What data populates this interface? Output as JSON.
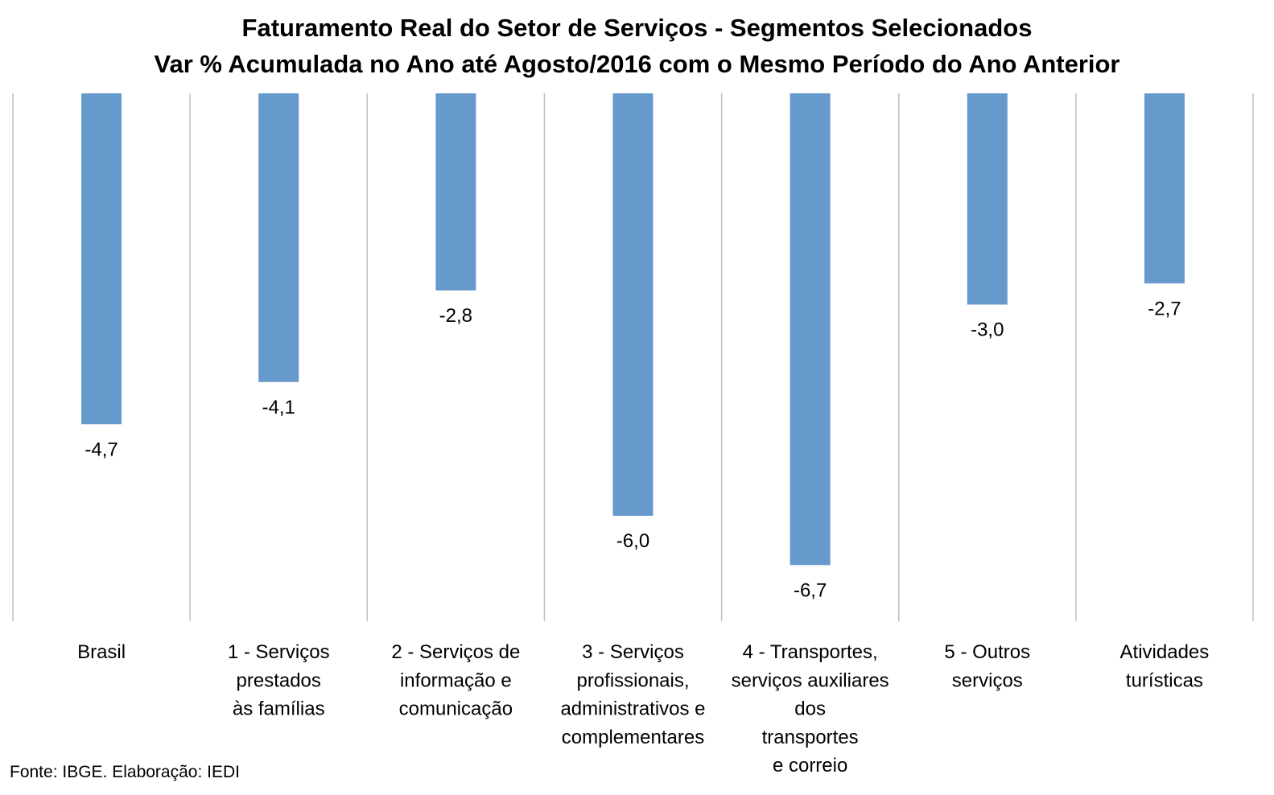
{
  "chart_data": {
    "type": "bar",
    "title": "Faturamento Real do Setor de Serviços - Segmentos Selecionados",
    "subtitle": "Var % Acumulada no Ano até Agosto/2016 com o Mesmo Período do Ano Anterior",
    "categories": [
      [
        "Brasil"
      ],
      [
        "1 - Serviços",
        "prestados",
        "às famílias"
      ],
      [
        "2 - Serviços de",
        "informação e",
        "comunicação"
      ],
      [
        "3 - Serviços",
        "profissionais,",
        "administrativos e",
        "complementares"
      ],
      [
        "4 - Transportes,",
        "serviços auxiliares",
        "dos",
        "transportes",
        "e correio"
      ],
      [
        "5 - Outros",
        "serviços"
      ],
      [
        "Atividades",
        "turísticas"
      ]
    ],
    "values": [
      -4.7,
      -4.1,
      -2.8,
      -6.0,
      -6.7,
      -3.0,
      -2.7
    ],
    "data_labels": [
      "-4,7",
      "-4,1",
      "-2,8",
      "-6,0",
      "-6,7",
      "-3,0",
      "-2,7"
    ],
    "ylim": [
      -7.5,
      0
    ],
    "bar_color": "#6699CC",
    "grid": "vertical category separators",
    "legend": "none"
  },
  "source": "Fonte: IBGE. Elaboração: IEDI"
}
